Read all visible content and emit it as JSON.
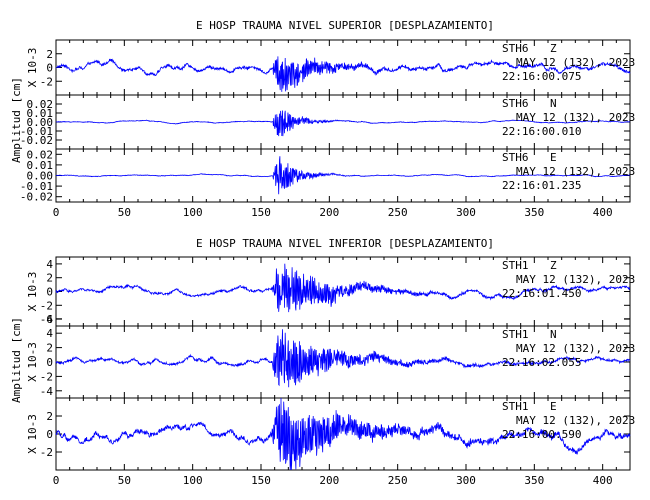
{
  "chart_data": [
    {
      "type": "line",
      "title": "E HOSP TRAUMA NIVEL SUPERIOR [DESPLAZAMIENTO]",
      "ylabel": "Amplitud [cm]",
      "xlim": [
        0,
        420
      ],
      "xticks": [
        "0",
        "50",
        "100",
        "150",
        "200",
        "250",
        "300",
        "350",
        "400"
      ],
      "panels": [
        {
          "station": "STH6",
          "component": "Z",
          "scale_label": "X 10-3",
          "date": "MAY 12 (132), 2023",
          "time": "22:16:00.075",
          "ylim": [
            -4,
            4
          ],
          "yticks": [
            "2",
            "0",
            "-2"
          ],
          "tick_values": [
            2,
            0,
            -2
          ],
          "noise": 0.45,
          "peak": 3.2,
          "onset": 158,
          "peak_t": 163,
          "decay": 22,
          "coda": 0.6
        },
        {
          "station": "STH6",
          "component": "N",
          "scale_label": "",
          "date": "MAY 12 (132), 2023",
          "time": "22:16:00.010",
          "ylim": [
            -0.03,
            0.03
          ],
          "yticks": [
            "0.02",
            "0.01",
            "0.00",
            "-0.01",
            "-0.02"
          ],
          "tick_values": [
            0.02,
            0.01,
            0,
            -0.01,
            -0.02
          ],
          "noise": 0.0006,
          "peak": 0.021,
          "onset": 158,
          "peak_t": 163,
          "decay": 12,
          "coda": 0.005
        },
        {
          "station": "STH6",
          "component": "E",
          "scale_label": "",
          "date": "MAY 12 (132), 2023",
          "time": "22:16:01.235",
          "ylim": [
            -0.025,
            0.025
          ],
          "yticks": [
            "0.02",
            "0.01",
            "0.00",
            "-0.01",
            "-0.02"
          ],
          "tick_values": [
            0.02,
            0.01,
            0,
            -0.01,
            -0.02
          ],
          "noise": 0.0005,
          "peak": 0.021,
          "onset": 158,
          "peak_t": 163,
          "decay": 12,
          "coda": 0.004
        }
      ]
    },
    {
      "type": "line",
      "title": "E HOSP TRAUMA NIVEL INFERIOR [DESPLAZAMIENTO]",
      "ylabel": "Amplitud [cm]",
      "xlim": [
        0,
        420
      ],
      "xticks": [
        "0",
        "50",
        "100",
        "150",
        "200",
        "250",
        "300",
        "350",
        "400"
      ],
      "panels": [
        {
          "station": "STH1",
          "component": "Z",
          "scale_label": "X 10-3",
          "date": "MAY 12 (132), 2023",
          "time": "22:16:01.450",
          "ylim": [
            -5,
            5
          ],
          "yticks": [
            "4",
            "2",
            "0",
            "-2",
            "-4"
          ],
          "tick_values": [
            4,
            2,
            0,
            -2,
            -4
          ],
          "noise": 0.35,
          "peak": 4.5,
          "onset": 158,
          "peak_t": 163,
          "decay": 30,
          "coda": 0.7
        },
        {
          "station": "STH1",
          "component": "N",
          "scale_label": "X 10-3",
          "date": "MAY 12 (132), 2023",
          "time": "22:16:02.055",
          "ylim": [
            -5,
            5
          ],
          "yticks": [
            "6",
            "4",
            "2",
            "0",
            "-2",
            "-4"
          ],
          "tick_values": [
            6,
            4,
            2,
            0,
            -2,
            -4
          ],
          "noise": 0.35,
          "peak": 4.6,
          "onset": 158,
          "peak_t": 163,
          "decay": 32,
          "coda": 0.8
        },
        {
          "station": "STH1",
          "component": "E",
          "scale_label": "X 10-3",
          "date": "MAY 12 (132), 2023",
          "time": "22:16:00.590",
          "ylim": [
            -4,
            4
          ],
          "yticks": [
            "2",
            "0",
            "-2"
          ],
          "tick_values": [
            2,
            0,
            -2
          ],
          "noise": 0.55,
          "peak": 4.0,
          "onset": 158,
          "peak_t": 163,
          "decay": 35,
          "coda": 1.0
        }
      ]
    }
  ]
}
